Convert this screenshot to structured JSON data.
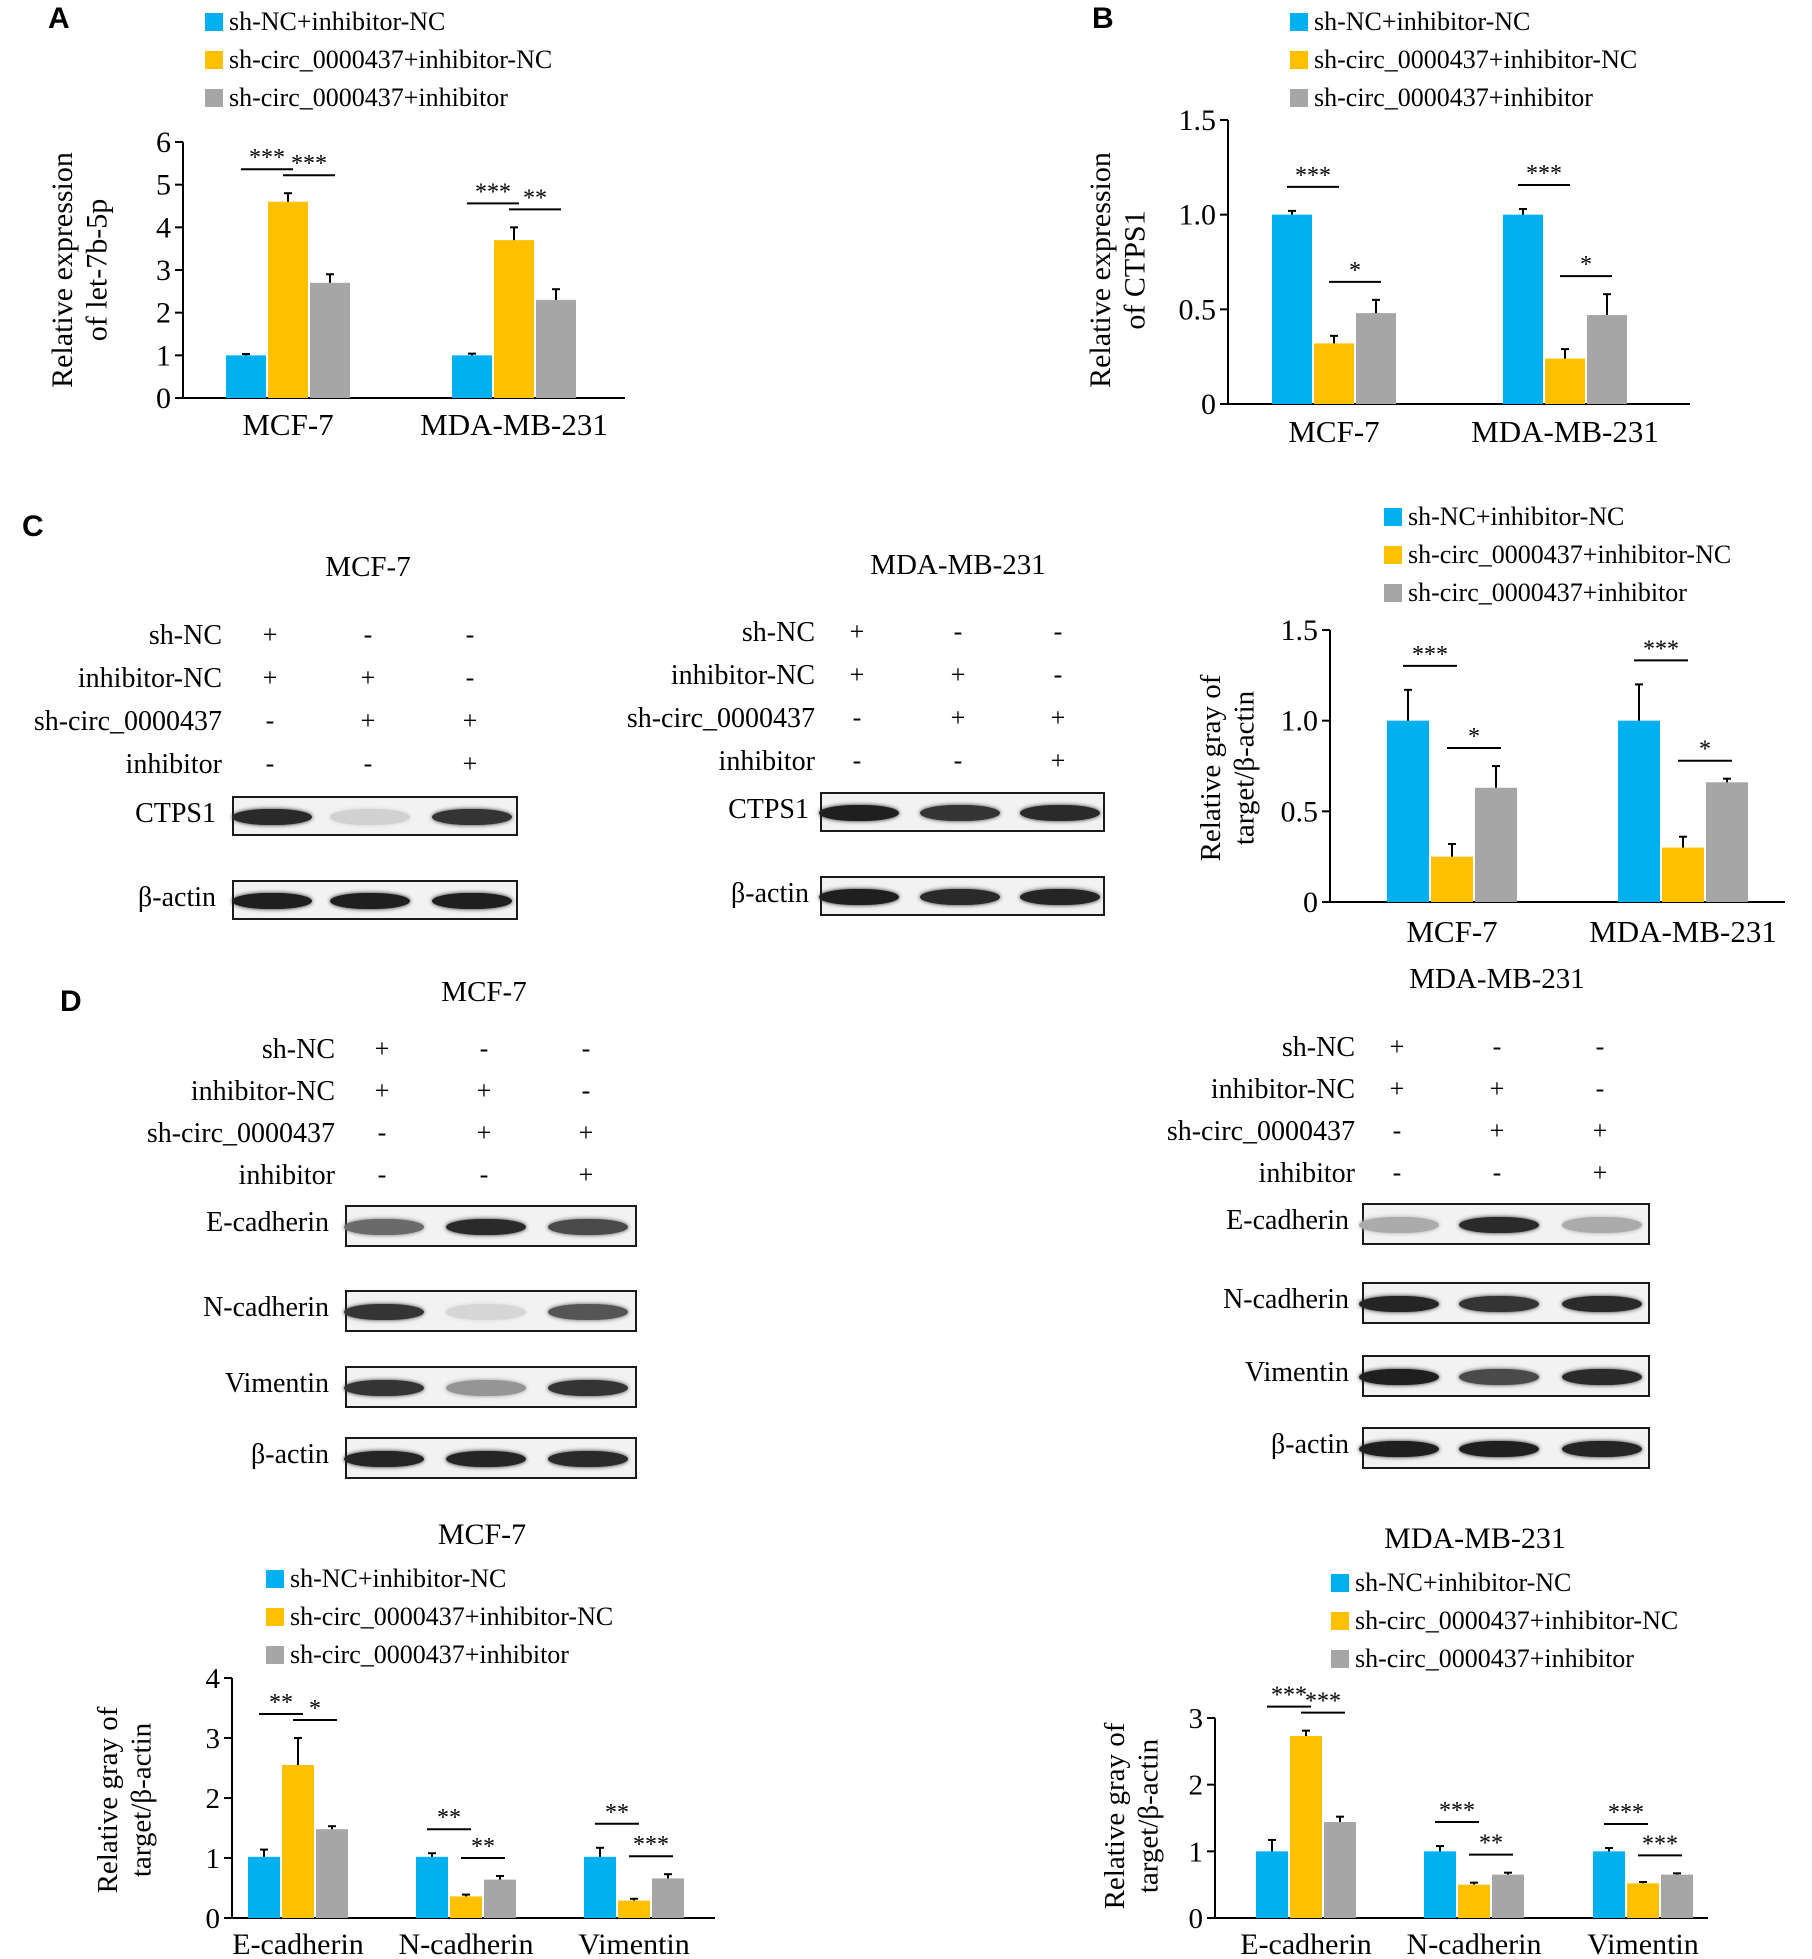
{
  "colors": {
    "blue": "#00b0f0",
    "yellow": "#ffc000",
    "gray": "#a6a6a6"
  },
  "panels": {
    "A": "A",
    "B": "B",
    "C": "C",
    "D": "D"
  },
  "chart_data": [
    {
      "id": "A",
      "type": "bar",
      "categories": [
        "MCF-7",
        "MDA-MB-231"
      ],
      "ylabel": "Relative expression\nof let-7b-5p",
      "ylim": [
        0,
        6
      ],
      "yticks": [
        "0",
        "1",
        "2",
        "3",
        "4",
        "5",
        "6"
      ],
      "legend": [
        "sh-NC+inhibitor-NC",
        "sh-circ_0000437+inhibitor-NC",
        "sh-circ_0000437+inhibitor"
      ],
      "series": [
        {
          "values": [
            1.0,
            1.0
          ],
          "errors": [
            0.03,
            0.04
          ]
        },
        {
          "values": [
            4.6,
            3.7
          ],
          "errors": [
            0.2,
            0.3
          ]
        },
        {
          "values": [
            2.7,
            2.3
          ],
          "errors": [
            0.2,
            0.25
          ]
        }
      ],
      "significance": [
        [
          "***",
          "***"
        ],
        [
          "***",
          "**"
        ]
      ]
    },
    {
      "id": "B",
      "type": "bar",
      "categories": [
        "MCF-7",
        "MDA-MB-231"
      ],
      "ylabel": "Relative expression\nof CTPS1",
      "ylim": [
        0,
        1.5
      ],
      "yticks": [
        "0",
        "0.5",
        "1.0",
        "1.5"
      ],
      "legend": [
        "sh-NC+inhibitor-NC",
        "sh-circ_0000437+inhibitor-NC",
        "sh-circ_0000437+inhibitor"
      ],
      "series": [
        {
          "values": [
            1.0,
            1.0
          ],
          "errors": [
            0.02,
            0.03
          ]
        },
        {
          "values": [
            0.32,
            0.24
          ],
          "errors": [
            0.04,
            0.05
          ]
        },
        {
          "values": [
            0.48,
            0.47
          ],
          "errors": [
            0.07,
            0.11
          ]
        }
      ],
      "significance": [
        [
          "***",
          "*"
        ],
        [
          "***",
          "*"
        ]
      ]
    },
    {
      "id": "C",
      "type": "bar",
      "categories": [
        "MCF-7",
        "MDA-MB-231"
      ],
      "ylabel": "Relative gray of\ntarget/β-actin",
      "ylim": [
        0,
        1.5
      ],
      "yticks": [
        "0",
        "0.5",
        "1.0",
        "1.5"
      ],
      "legend": [
        "sh-NC+inhibitor-NC",
        "sh-circ_0000437+inhibitor-NC",
        "sh-circ_0000437+inhibitor"
      ],
      "series": [
        {
          "values": [
            1.0,
            1.0
          ],
          "errors": [
            0.17,
            0.2
          ]
        },
        {
          "values": [
            0.25,
            0.3
          ],
          "errors": [
            0.07,
            0.06
          ]
        },
        {
          "values": [
            0.63,
            0.66
          ],
          "errors": [
            0.12,
            0.02
          ]
        }
      ],
      "significance": [
        [
          "***",
          "*"
        ],
        [
          "***",
          "*"
        ]
      ]
    },
    {
      "id": "D1",
      "type": "bar",
      "title": "MCF-7",
      "categories": [
        "E-cadherin",
        "N-cadherin",
        "Vimentin"
      ],
      "ylabel": "Relative gray of\ntarget/β-actin",
      "ylim": [
        0,
        4
      ],
      "yticks": [
        "0",
        "1",
        "2",
        "3",
        "4"
      ],
      "legend": [
        "sh-NC+inhibitor-NC",
        "sh-circ_0000437+inhibitor-NC",
        "sh-circ_0000437+inhibitor"
      ],
      "series": [
        {
          "values": [
            1.02,
            1.02,
            1.02
          ],
          "errors": [
            0.12,
            0.06,
            0.15
          ]
        },
        {
          "values": [
            2.55,
            0.36,
            0.29
          ],
          "errors": [
            0.45,
            0.03,
            0.03
          ]
        },
        {
          "values": [
            1.48,
            0.64,
            0.66
          ],
          "errors": [
            0.05,
            0.06,
            0.07
          ]
        }
      ],
      "significance": [
        [
          "**",
          "*"
        ],
        [
          "**",
          "**"
        ],
        [
          "**",
          "***"
        ]
      ]
    },
    {
      "id": "D2",
      "type": "bar",
      "title": "MDA-MB-231",
      "categories": [
        "E-cadherin",
        "N-cadherin",
        "Vimentin"
      ],
      "ylabel": "Relative gray of\ntarget/β-actin",
      "ylim": [
        0,
        3
      ],
      "yticks": [
        "0",
        "1",
        "2",
        "3"
      ],
      "legend": [
        "sh-NC+inhibitor-NC",
        "sh-circ_0000437+inhibitor-NC",
        "sh-circ_0000437+inhibitor"
      ],
      "series": [
        {
          "values": [
            1.0,
            1.0,
            1.0
          ],
          "errors": [
            0.17,
            0.08,
            0.05
          ]
        },
        {
          "values": [
            2.73,
            0.5,
            0.52
          ],
          "errors": [
            0.08,
            0.03,
            0.02
          ]
        },
        {
          "values": [
            1.44,
            0.65,
            0.65
          ],
          "errors": [
            0.08,
            0.03,
            0.02
          ]
        }
      ],
      "significance": [
        [
          "***",
          "***"
        ],
        [
          "***",
          "**"
        ],
        [
          "***",
          "***"
        ]
      ]
    }
  ],
  "blots": {
    "C_mcf7": {
      "title": "MCF-7",
      "conditions": [
        {
          "label": "sh-NC",
          "signs": [
            "+",
            "-",
            "-"
          ]
        },
        {
          "label": "inhibitor-NC",
          "signs": [
            "+",
            "+",
            "-"
          ]
        },
        {
          "label": "sh-circ_0000437",
          "signs": [
            "-",
            "+",
            "+"
          ]
        },
        {
          "label": "inhibitor",
          "signs": [
            "-",
            "-",
            "+"
          ]
        }
      ],
      "proteins": [
        {
          "label": "CTPS1",
          "intensity": [
            0.9,
            0.12,
            0.85
          ]
        },
        {
          "label": "β-actin",
          "intensity": [
            0.95,
            0.95,
            0.95
          ]
        }
      ]
    },
    "C_mda": {
      "title": "MDA-MB-231",
      "conditions": [
        {
          "label": "sh-NC",
          "signs": [
            "+",
            "-",
            "-"
          ]
        },
        {
          "label": "inhibitor-NC",
          "signs": [
            "+",
            "+",
            "-"
          ]
        },
        {
          "label": "sh-circ_0000437",
          "signs": [
            "-",
            "+",
            "+"
          ]
        },
        {
          "label": "inhibitor",
          "signs": [
            "-",
            "-",
            "+"
          ]
        }
      ],
      "proteins": [
        {
          "label": "CTPS1",
          "intensity": [
            0.95,
            0.85,
            0.9
          ]
        },
        {
          "label": "β-actin",
          "intensity": [
            0.95,
            0.9,
            0.92
          ]
        }
      ]
    },
    "D_mcf7": {
      "title": "MCF-7",
      "conditions": [
        {
          "label": "sh-NC",
          "signs": [
            "+",
            "-",
            "-"
          ]
        },
        {
          "label": "inhibitor-NC",
          "signs": [
            "+",
            "+",
            "-"
          ]
        },
        {
          "label": "sh-circ_0000437",
          "signs": [
            "-",
            "+",
            "+"
          ]
        },
        {
          "label": "inhibitor",
          "signs": [
            "-",
            "-",
            "+"
          ]
        }
      ],
      "proteins": [
        {
          "label": "E-cadherin",
          "intensity": [
            0.6,
            0.9,
            0.75
          ]
        },
        {
          "label": "N-cadherin",
          "intensity": [
            0.85,
            0.1,
            0.7
          ]
        },
        {
          "label": "Vimentin",
          "intensity": [
            0.85,
            0.4,
            0.85
          ]
        },
        {
          "label": "β-actin",
          "intensity": [
            0.92,
            0.92,
            0.9
          ]
        }
      ]
    },
    "D_mda": {
      "title": "MDA-MB-231",
      "conditions": [
        {
          "label": "sh-NC",
          "signs": [
            "+",
            "-",
            "-"
          ]
        },
        {
          "label": "inhibitor-NC",
          "signs": [
            "+",
            "+",
            "-"
          ]
        },
        {
          "label": "sh-circ_0000437",
          "signs": [
            "-",
            "+",
            "+"
          ]
        },
        {
          "label": "inhibitor",
          "signs": [
            "-",
            "-",
            "+"
          ]
        }
      ],
      "proteins": [
        {
          "label": "E-cadherin",
          "intensity": [
            0.3,
            0.9,
            0.3
          ]
        },
        {
          "label": "N-cadherin",
          "intensity": [
            0.92,
            0.85,
            0.9
          ]
        },
        {
          "label": "Vimentin",
          "intensity": [
            0.95,
            0.75,
            0.9
          ]
        },
        {
          "label": "β-actin",
          "intensity": [
            0.95,
            0.95,
            0.92
          ]
        }
      ]
    }
  }
}
